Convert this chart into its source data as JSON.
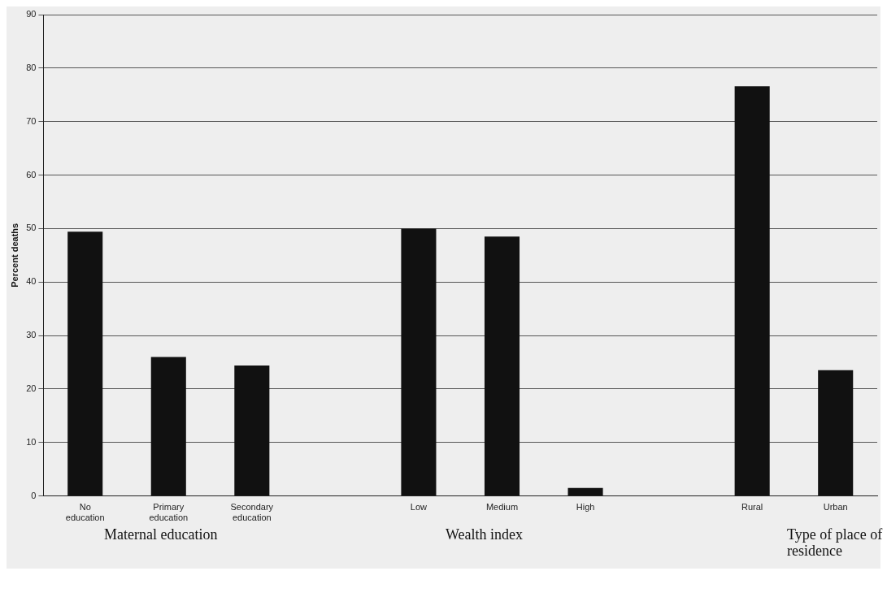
{
  "chart_data": {
    "type": "bar",
    "ylabel": "Percent deaths",
    "categories": [
      "No education",
      "Primary education",
      "Secondary education",
      null,
      "Low",
      "Medium",
      "High",
      null,
      "Rural",
      "Urban"
    ],
    "values": [
      49.4,
      26,
      24.4,
      null,
      50,
      48.5,
      1.5,
      null,
      76.6,
      23.5
    ],
    "color": "#111111",
    "ylim": [
      0,
      90
    ],
    "yticks": [
      0,
      10,
      20,
      30,
      40,
      50,
      60,
      70,
      80,
      90
    ],
    "grid": "y",
    "legend": false,
    "annotations": [
      "Maternal education",
      "Wealth index",
      "Type of place of residence"
    ]
  }
}
